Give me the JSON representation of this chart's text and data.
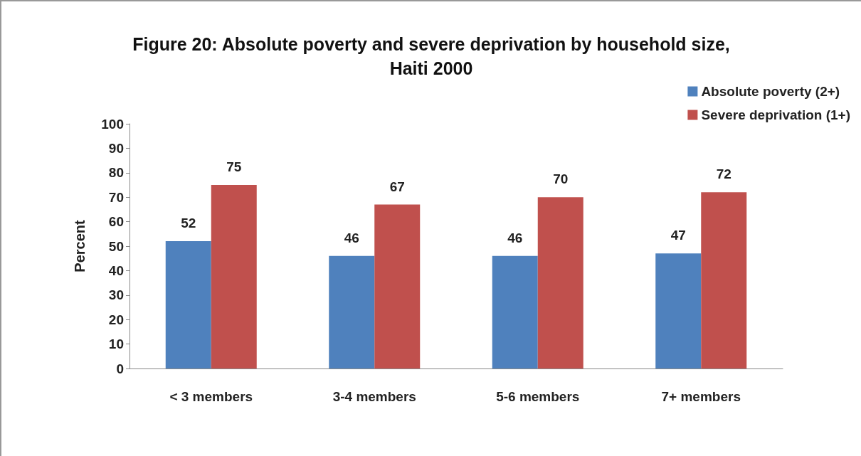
{
  "chart_data": {
    "type": "bar",
    "title": "Figure 20: Absolute poverty and severe deprivation by household size,\nHaiti 2000",
    "ylabel": "Percent",
    "categories": [
      "< 3 members",
      "3-4 members",
      "5-6 members",
      "7+ members"
    ],
    "series": [
      {
        "name": "Absolute poverty (2+)",
        "color": "#4f81bd",
        "values": [
          52,
          46,
          46,
          47
        ]
      },
      {
        "name": "Severe deprivation (1+)",
        "color": "#c0504d",
        "values": [
          75,
          67,
          70,
          72
        ]
      }
    ],
    "ylim": [
      0,
      100
    ],
    "yticks": [
      0,
      10,
      20,
      30,
      40,
      50,
      60,
      70,
      80,
      90,
      100
    ],
    "grid": false,
    "legend": "top right",
    "data_labels": true
  }
}
